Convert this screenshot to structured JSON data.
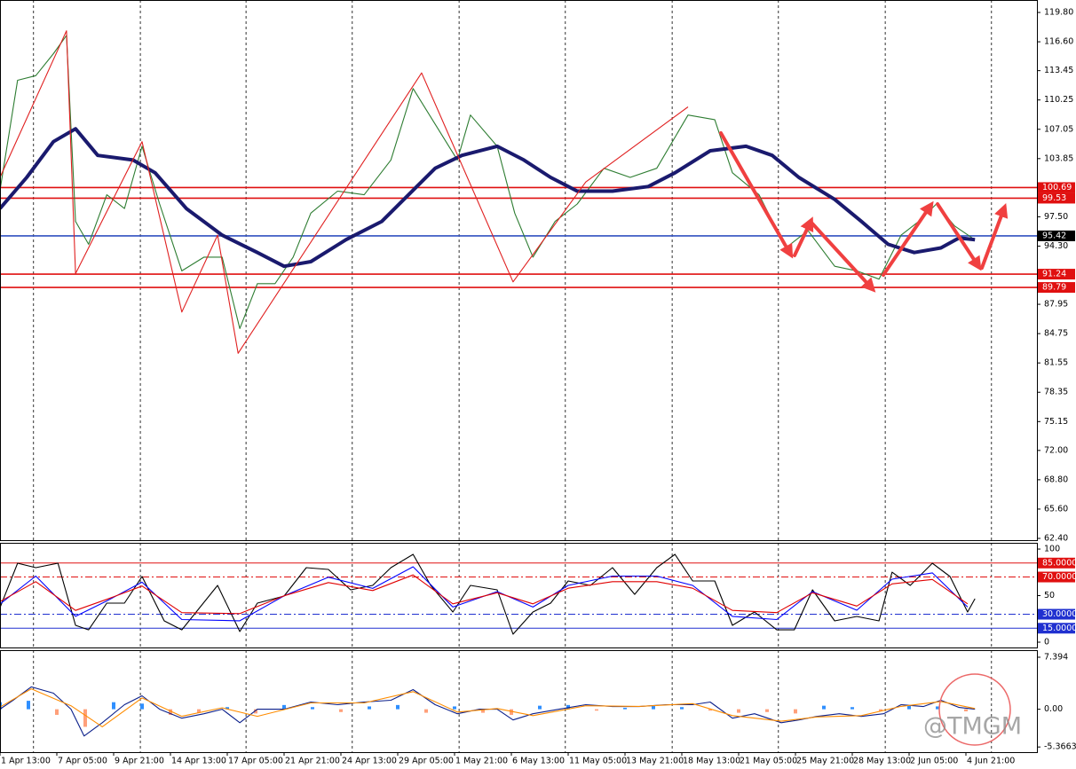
{
  "chart_data": [
    {
      "type": "line",
      "xlim": [
        0,
        18.25
      ],
      "xticks": [
        {
          "value": 0,
          "label": "1 Apr 13:00"
        },
        {
          "value": 1,
          "label": "7 Apr 05:00"
        },
        {
          "value": 2,
          "label": "9 Apr 21:00"
        },
        {
          "value": 3,
          "label": "14 Apr 13:00"
        },
        {
          "value": 4,
          "label": "17 Apr 05:00"
        },
        {
          "value": 5,
          "label": "21 Apr 21:00"
        },
        {
          "value": 6,
          "label": "24 Apr 13:00"
        },
        {
          "value": 7,
          "label": "29 Apr 05:00"
        },
        {
          "value": 8,
          "label": "1 May 21:00"
        },
        {
          "value": 9,
          "label": "6 May 13:00"
        },
        {
          "value": 10,
          "label": "11 May 05:00"
        },
        {
          "value": 11,
          "label": "13 May 21:00"
        },
        {
          "value": 12,
          "label": "18 May 13:00"
        },
        {
          "value": 13,
          "label": "21 May 05:00"
        },
        {
          "value": 14,
          "label": "25 May 21:00"
        },
        {
          "value": 15,
          "label": "28 May 13:00"
        },
        {
          "value": 16,
          "label": "2 Jun 05:00"
        },
        {
          "value": 17,
          "label": "4 Jun 21:00"
        }
      ],
      "xgrid": [
        0.59,
        2.47,
        4.33,
        6.2,
        8.08,
        9.95,
        11.83,
        13.7,
        15.58,
        17.45
      ],
      "ylim": [
        62.11,
        121.16
      ],
      "yticks": [
        {
          "value": 119.8,
          "label": "119.80"
        },
        {
          "value": 116.6,
          "label": "116.60"
        },
        113.45,
        110.25,
        107.05,
        103.85,
        {
          "value": 97.5,
          "label": "97.50"
        },
        {
          "value": 94.3,
          "label": "94.30"
        },
        87.95,
        84.75,
        81.55,
        78.35,
        75.15,
        {
          "value": 72,
          "label": "72.00"
        },
        {
          "value": 68.8,
          "label": "68.80"
        },
        {
          "value": 65.6,
          "label": "65.60"
        },
        {
          "value": 62.4,
          "label": "62.40"
        }
      ],
      "levels": [
        {
          "value": 100.69,
          "color": "#e01010",
          "box_color": "#e01010"
        },
        {
          "value": 99.53,
          "color": "#e01010",
          "box_color": "#e01010"
        },
        {
          "value": 95.42,
          "color": "#3050c0",
          "box_color": "#000000"
        },
        {
          "value": 91.24,
          "color": "#e01010",
          "box_color": "#e01010"
        },
        {
          "value": 89.79,
          "color": "#e01010",
          "box_color": "#e01010"
        }
      ],
      "series": [
        {
          "color": "#2e7d32",
          "x": [
            0,
            0.31,
            0.63,
            0.94,
            1.17,
            1.33,
            1.56,
            1.88,
            2.19,
            2.5,
            2.81,
            3.2,
            3.59,
            3.91,
            4.22,
            4.53,
            4.84,
            5.16,
            5.47,
            5.94,
            6.41,
            6.88,
            7.27,
            7.66,
            8.05,
            8.28,
            8.75,
            9.06,
            9.38,
            9.77,
            10.16,
            10.63,
            11.09,
            11.56,
            12.11,
            12.58,
            12.89,
            13.36,
            13.83,
            14.22,
            14.69,
            15.08,
            15.47,
            15.86,
            16.17,
            16.48,
            16.8,
            17.11
          ],
          "values": [
            100.4,
            112.4,
            112.9,
            115.3,
            117.3,
            97.0,
            94.5,
            99.9,
            98.4,
            105.2,
            98.9,
            91.6,
            93.1,
            93.1,
            85.3,
            90.2,
            90.2,
            93.1,
            97.9,
            100.3,
            99.9,
            103.7,
            111.5,
            107.6,
            103.7,
            108.6,
            105.2,
            97.9,
            93.1,
            97.0,
            98.9,
            102.8,
            101.8,
            102.8,
            108.6,
            108.1,
            102.3,
            99.9,
            94.1,
            96.0,
            92.1,
            91.6,
            90.7,
            95.5,
            97.0,
            98.9,
            96.5,
            95.2
          ]
        },
        {
          "color": "#1a1a6e",
          "emphasis": true,
          "x": [
            0,
            0.47,
            0.94,
            1.33,
            1.72,
            2.34,
            2.73,
            3.28,
            3.91,
            4.53,
            5,
            5.47,
            6.09,
            6.72,
            7.19,
            7.66,
            8.13,
            8.75,
            9.22,
            9.69,
            10.16,
            10.78,
            11.41,
            11.88,
            12.5,
            13.13,
            13.59,
            14.06,
            14.69,
            15.16,
            15.63,
            16.09,
            16.56,
            16.88,
            17.16
          ],
          "values": [
            98.4,
            101.8,
            105.7,
            107.1,
            104.2,
            103.7,
            102.3,
            98.4,
            95.5,
            93.6,
            92.1,
            92.6,
            95.0,
            97.0,
            99.9,
            102.8,
            104.2,
            105.2,
            103.7,
            101.8,
            100.3,
            100.3,
            100.8,
            102.3,
            104.7,
            105.2,
            104.2,
            101.8,
            99.4,
            97.0,
            94.5,
            93.6,
            94.1,
            95.2,
            95.0
          ]
        },
        {
          "color": "#e02020",
          "x": [
            0,
            1.17,
            1.33,
            2.5,
            3.2,
            3.83,
            4.19,
            7.42,
            9.03,
            10.31,
            12.11
          ],
          "values": [
            101.8,
            117.8,
            91.3,
            105.7,
            87.1,
            95.5,
            82.6,
            113.2,
            90.4,
            101.3,
            109.5
          ]
        }
      ]
    },
    {
      "type": "line",
      "ylim": [
        -5.7,
        106.7
      ],
      "yticks": [
        100,
        50,
        0
      ],
      "levels": [
        {
          "value": 85,
          "label": "85.0000",
          "color": "#e01010",
          "dash": "solid"
        },
        {
          "value": 70,
          "label": "70.0000",
          "color": "#e01010",
          "dash": "dashdot"
        },
        {
          "value": 30,
          "label": "30.0000",
          "color": "#2030d0",
          "dash": "dashdot"
        },
        {
          "value": 15,
          "label": "15.0000",
          "color": "#2030d0",
          "dash": "solid"
        }
      ],
      "series": [
        {
          "color": "#000000",
          "x": [
            0,
            0.31,
            0.63,
            1.02,
            1.33,
            1.56,
            1.88,
            2.19,
            2.5,
            2.89,
            3.2,
            3.83,
            4.22,
            4.53,
            5,
            5.39,
            5.78,
            6.17,
            6.56,
            6.88,
            7.27,
            7.58,
            7.97,
            8.28,
            8.75,
            9.03,
            9.38,
            9.69,
            10,
            10.39,
            10.78,
            11.17,
            11.56,
            11.88,
            12.19,
            12.58,
            12.89,
            13.28,
            13.67,
            13.98,
            14.3,
            14.69,
            15.08,
            15.47,
            15.7,
            16.02,
            16.41,
            16.72,
            17.03,
            17.16
          ],
          "values": [
            37.1,
            84.8,
            80,
            84.8,
            18.1,
            13.3,
            41.9,
            41.9,
            70.5,
            22.9,
            13.3,
            61,
            11.4,
            41.9,
            49.5,
            80,
            78.1,
            56.2,
            61,
            80,
            94.3,
            61,
            32.4,
            61,
            56.2,
            8.6,
            32.4,
            41.9,
            65.7,
            61,
            80,
            51.4,
            80,
            94.3,
            65.7,
            65.7,
            18.1,
            32.4,
            13.3,
            13.3,
            56.2,
            22.9,
            27.6,
            22.9,
            75.2,
            61,
            84.8,
            70.5,
            32.4,
            46.7
          ]
        },
        {
          "color": "#0000ff",
          "x": [
            0,
            0.63,
            1.33,
            1.88,
            2.5,
            3.2,
            4.22,
            5,
            5.78,
            6.56,
            7.27,
            7.97,
            8.75,
            9.38,
            10,
            10.78,
            11.56,
            12.19,
            12.89,
            13.67,
            14.3,
            15.08,
            15.7,
            16.41,
            17.03
          ],
          "values": [
            41,
            71,
            27.7,
            44.3,
            64.4,
            24.3,
            23,
            49.7,
            69.7,
            57.7,
            81,
            37.7,
            54.3,
            37.7,
            61,
            71,
            71,
            61,
            27.7,
            24.3,
            54.3,
            34.3,
            67.6,
            74.4,
            37.7
          ]
        },
        {
          "color": "#e00000",
          "x": [
            0,
            0.63,
            1.33,
            1.88,
            2.5,
            3.2,
            4.22,
            5,
            5.78,
            6.56,
            7.27,
            7.97,
            8.75,
            9.38,
            10,
            10.78,
            11.56,
            12.19,
            12.89,
            13.67,
            14.3,
            15.08,
            15.7,
            16.41,
            17.03
          ],
          "values": [
            43.6,
            65,
            34.1,
            46,
            60.3,
            31.7,
            30.7,
            49.8,
            64,
            55.5,
            72.2,
            41.2,
            53.1,
            41.2,
            57.9,
            65,
            65,
            57.9,
            34.1,
            31.7,
            53.1,
            38.8,
            62.6,
            67.4,
            41.2
          ]
        }
      ]
    },
    {
      "type": "combo",
      "ylim": [
        -6.1,
        8.4
      ],
      "yticks": [
        7.394,
        {
          "value": 0,
          "label": "0.00"
        },
        -5.3663
      ],
      "histogram": {
        "positive_color": "#2f8fff",
        "negative_color": "#ffa07a",
        "x": [
          0,
          0.5,
          1,
          1.5,
          2,
          2.5,
          3,
          3.5,
          4,
          4.5,
          5,
          5.5,
          6,
          6.5,
          7,
          7.5,
          8,
          8.5,
          9,
          9.5,
          10,
          10.5,
          11,
          11.5,
          12,
          12.5,
          13,
          13.5,
          14,
          14.5,
          15,
          15.5,
          16,
          16.5,
          17
        ],
        "values": [
          1.0,
          1.2,
          -0.8,
          -2.5,
          1.0,
          0.8,
          -0.8,
          -0.5,
          0.3,
          -0.6,
          0.6,
          0.3,
          -0.4,
          0.4,
          0.6,
          -0.5,
          0.4,
          -0.5,
          -0.8,
          0.5,
          0.6,
          -0.2,
          0.2,
          0.5,
          0.3,
          -0.2,
          -0.5,
          -0.4,
          -0.6,
          0.5,
          0.3,
          -0.3,
          0.5,
          0.4,
          -0.3
        ]
      },
      "series": [
        {
          "color": "#0b1f8a",
          "x": [
            0,
            0.23,
            0.55,
            0.94,
            1.25,
            1.48,
            1.8,
            2.19,
            2.5,
            2.81,
            3.2,
            3.59,
            3.91,
            4.22,
            4.53,
            5,
            5.47,
            5.94,
            6.41,
            6.88,
            7.27,
            7.66,
            8.05,
            8.44,
            8.75,
            9.03,
            9.38,
            9.84,
            10.31,
            10.78,
            11.25,
            11.72,
            12.19,
            12.5,
            12.89,
            13.28,
            13.75,
            14.06,
            14.38,
            14.77,
            15.16,
            15.55,
            15.86,
            16.25,
            16.56,
            16.88,
            17.16
          ],
          "values": [
            0,
            1.27,
            3.18,
            2.29,
            0,
            -3.81,
            -1.91,
            0.64,
            1.91,
            0,
            -1.27,
            -0.64,
            0,
            -1.91,
            0,
            0,
            1.02,
            0.64,
            1.02,
            1.27,
            2.79,
            0.64,
            -0.64,
            0,
            0,
            -1.52,
            -0.64,
            0,
            0.64,
            0.38,
            0.38,
            0.64,
            0.64,
            1.02,
            -1.27,
            -0.64,
            -1.91,
            -1.52,
            -1.02,
            -0.64,
            -1.02,
            -0.64,
            0.64,
            0.38,
            1.27,
            0.25,
            0
          ]
        },
        {
          "color": "#ff8c00",
          "x": [
            0,
            0.55,
            1.25,
            1.8,
            2.5,
            3.2,
            3.91,
            4.53,
            5.47,
            6.41,
            7.27,
            8.05,
            8.75,
            9.38,
            10.31,
            11.25,
            12.19,
            12.89,
            13.75,
            14.38,
            15.16,
            15.86,
            16.56,
            17.16
          ],
          "values": [
            0.3,
            2.9,
            0.5,
            -2.5,
            1.6,
            -1,
            0.2,
            -1,
            0.9,
            0.9,
            2.5,
            -0.4,
            0.1,
            -0.9,
            0.5,
            0.4,
            0.8,
            -0.9,
            -1.7,
            -1.1,
            -0.9,
            0.4,
            1.1,
            0.1
          ]
        }
      ]
    }
  ],
  "watermark": "@TMGM"
}
